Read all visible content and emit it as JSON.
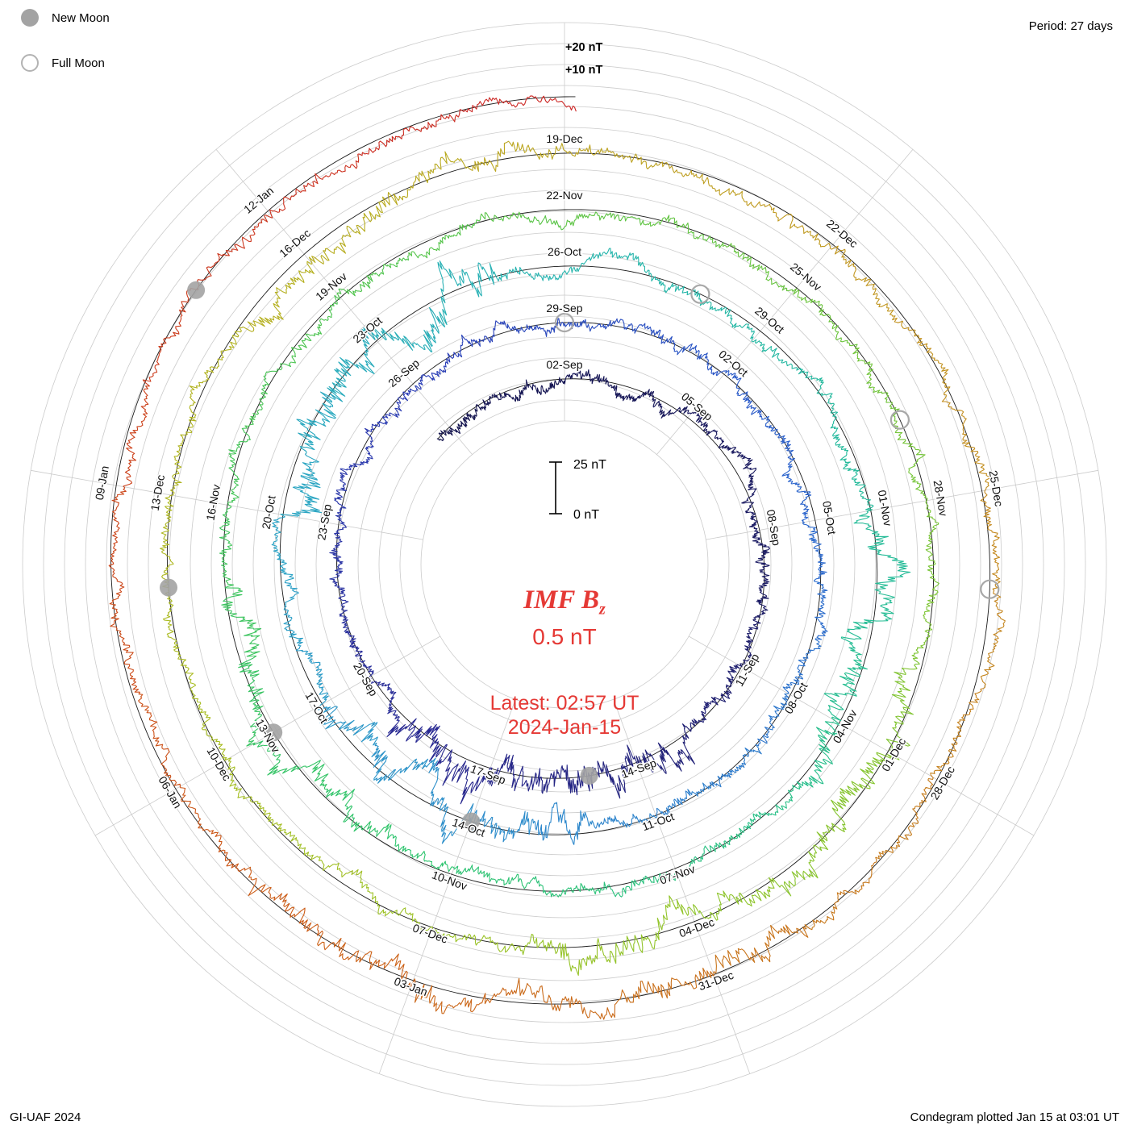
{
  "accent_red": "#e53935",
  "legend": {
    "new_moon_label": "New Moon",
    "full_moon_label": "Full Moon"
  },
  "period_label": "Period: 27 days",
  "footer": {
    "left": "GI-UAF 2024",
    "right": "Condegram plotted Jan 15 at 03:01 UT"
  },
  "center": {
    "title_main": "IMF B",
    "title_sub": "z",
    "value": "0.5 nT",
    "latest_line1": "Latest: 02:57 UT",
    "latest_line2": "2024-Jan-15"
  },
  "chart_data": {
    "type": "line",
    "variant": "condegram_spiral_polar",
    "title": "IMF Bz",
    "units": "nT",
    "period_days": 27,
    "rotation_label_step_days": 3,
    "time_start": "2023-Aug-30",
    "time_end_latest": "2024-Jan-15 02:57 UT",
    "current_value_nT": 0.5,
    "bz_scale": {
      "zero_label": "0 nT",
      "span_label": "25 nT",
      "top_gridline_labels": [
        "+20 nT",
        "+10 nT"
      ],
      "gridline_step_nT": 10,
      "plotted_range_nT": [
        -25,
        25
      ]
    },
    "grid": {
      "radial_spoke_step_deg": 40,
      "concentric_rings": true
    },
    "date_labels": [
      {
        "date": "02-Sep",
        "t": 0
      },
      {
        "date": "05-Sep",
        "t": 3
      },
      {
        "date": "08-Sep",
        "t": 6
      },
      {
        "date": "11-Sep",
        "t": 9
      },
      {
        "date": "14-Sep",
        "t": 12
      },
      {
        "date": "17-Sep",
        "t": 15
      },
      {
        "date": "20-Sep",
        "t": 18
      },
      {
        "date": "23-Sep",
        "t": 21
      },
      {
        "date": "26-Sep",
        "t": 24
      },
      {
        "date": "29-Sep",
        "t": 27
      },
      {
        "date": "02-Oct",
        "t": 30
      },
      {
        "date": "05-Oct",
        "t": 33
      },
      {
        "date": "08-Oct",
        "t": 36
      },
      {
        "date": "11-Oct",
        "t": 39
      },
      {
        "date": "14-Oct",
        "t": 42
      },
      {
        "date": "17-Oct",
        "t": 45
      },
      {
        "date": "20-Oct",
        "t": 48
      },
      {
        "date": "23-Oct",
        "t": 51
      },
      {
        "date": "26-Oct",
        "t": 54
      },
      {
        "date": "29-Oct",
        "t": 57
      },
      {
        "date": "01-Nov",
        "t": 60
      },
      {
        "date": "04-Nov",
        "t": 63
      },
      {
        "date": "07-Nov",
        "t": 66
      },
      {
        "date": "10-Nov",
        "t": 69
      },
      {
        "date": "13-Nov",
        "t": 72
      },
      {
        "date": "16-Nov",
        "t": 75
      },
      {
        "date": "19-Nov",
        "t": 78
      },
      {
        "date": "22-Nov",
        "t": 81
      },
      {
        "date": "25-Nov",
        "t": 84
      },
      {
        "date": "28-Nov",
        "t": 87
      },
      {
        "date": "01-Dec",
        "t": 90
      },
      {
        "date": "04-Dec",
        "t": 93
      },
      {
        "date": "07-Dec",
        "t": 96
      },
      {
        "date": "10-Dec",
        "t": 99
      },
      {
        "date": "13-Dec",
        "t": 102
      },
      {
        "date": "16-Dec",
        "t": 105
      },
      {
        "date": "19-Dec",
        "t": 108
      },
      {
        "date": "22-Dec",
        "t": 111
      },
      {
        "date": "25-Dec",
        "t": 114
      },
      {
        "date": "28-Dec",
        "t": 117
      },
      {
        "date": "31-Dec",
        "t": 120
      },
      {
        "date": "03-Jan",
        "t": 123
      },
      {
        "date": "06-Jan",
        "t": 126
      },
      {
        "date": "09-Jan",
        "t": 129
      },
      {
        "date": "12-Jan",
        "t": 132
      }
    ],
    "moons": {
      "new": [
        {
          "date": "15-Sep-2023",
          "t": 13
        },
        {
          "date": "14-Oct-2023",
          "t": 42
        },
        {
          "date": "13-Nov-2023",
          "t": 72
        },
        {
          "date": "12-Dec-2023",
          "t": 101
        },
        {
          "date": "11-Jan-2024",
          "t": 131
        }
      ],
      "full": [
        {
          "date": "29-Sep-2023",
          "t": 27
        },
        {
          "date": "28-Oct-2023",
          "t": 56
        },
        {
          "date": "27-Nov-2023",
          "t": 86
        },
        {
          "date": "26-Dec-2023",
          "t": 115
        }
      ]
    },
    "color_timeline": [
      {
        "t": -3.4,
        "color": "#14144e"
      },
      {
        "t": 8,
        "color": "#1b1b66"
      },
      {
        "t": 16,
        "color": "#282890"
      },
      {
        "t": 24,
        "color": "#2a3cb4"
      },
      {
        "t": 32,
        "color": "#2b62cc"
      },
      {
        "t": 40,
        "color": "#2e86cc"
      },
      {
        "t": 48,
        "color": "#2aa4c4"
      },
      {
        "t": 54,
        "color": "#26b4ae"
      },
      {
        "t": 62,
        "color": "#24bd92"
      },
      {
        "t": 70,
        "color": "#2fc46c"
      },
      {
        "t": 78,
        "color": "#4ec44e"
      },
      {
        "t": 86,
        "color": "#72c438"
      },
      {
        "t": 94,
        "color": "#94c428"
      },
      {
        "t": 100,
        "color": "#aabc22"
      },
      {
        "t": 106,
        "color": "#b8ac20"
      },
      {
        "t": 112,
        "color": "#c29420"
      },
      {
        "t": 118,
        "color": "#c67a1c"
      },
      {
        "t": 124,
        "color": "#cc6018"
      },
      {
        "t": 129,
        "color": "#cc4218"
      },
      {
        "t": 135.2,
        "color": "#cc2424"
      }
    ],
    "storms": [
      {
        "t0": 11,
        "t1": 17,
        "boost": 2.7
      },
      {
        "t0": 40,
        "t1": 45,
        "boost": 2.3
      },
      {
        "t0": 48,
        "t1": 53,
        "boost": 2.6
      },
      {
        "t0": 60,
        "t1": 64,
        "boost": 2.0
      },
      {
        "t0": 70,
        "t1": 74,
        "boost": 1.9
      },
      {
        "t0": 89,
        "t1": 95,
        "boost": 2.2
      },
      {
        "t0": 104,
        "t1": 108,
        "boost": 1.8
      },
      {
        "t0": 119,
        "t1": 125,
        "boost": 2.0
      }
    ]
  }
}
